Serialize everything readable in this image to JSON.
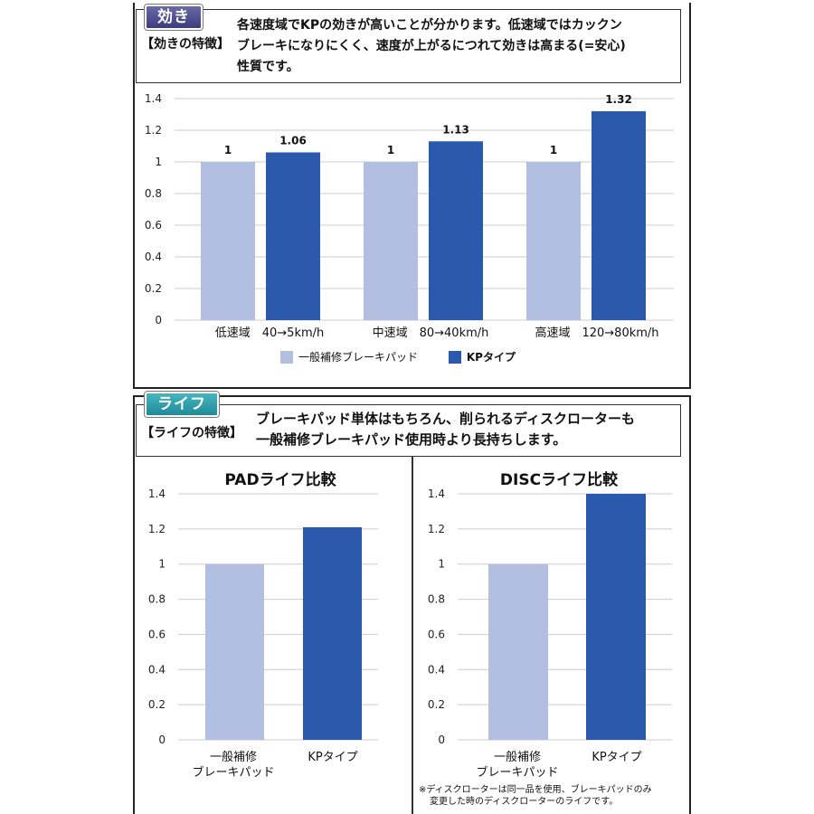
{
  "colors": {
    "light_bar": "#b3bfe0",
    "dark_bar": "#2b5aad",
    "grid": "#cccccc",
    "tag_top": "#4a4a8c",
    "tag_bottom": "#2e9aa6"
  },
  "top": {
    "tag": "効き",
    "feature_label": "【効きの特徴】",
    "desc_lines": [
      "各速度域でKPの効きが高いことが分かります。低速域ではカックン",
      "ブレーキになりにくく、速度が上がるにつれて効きは高まる(=安心)",
      "性質です。"
    ],
    "legend": [
      {
        "label": "一般補修ブレーキパッド",
        "color": "#b3bfe0"
      },
      {
        "label": "KPタイプ",
        "color": "#2b5aad"
      }
    ]
  },
  "bottom": {
    "tag": "ライフ",
    "feature_label": "【ライフの特徴】",
    "desc_lines": [
      "ブレーキパッド単体はもちろん、削られるディスクローターも",
      "一般補修ブレーキパッド使用時より長持ちします。"
    ],
    "footnote_lines": [
      "※ディスクローターは同一品を使用、ブレーキパッドのみ",
      "変更した時のディスクローターのライフです。"
    ]
  },
  "chart_data": [
    {
      "type": "bar",
      "title": "",
      "categories": [
        "低速域　40→5km/h",
        "中速域　80→40km/h",
        "高速域　120→80km/h"
      ],
      "series": [
        {
          "name": "一般補修ブレーキパッド",
          "values": [
            1,
            1,
            1
          ],
          "labels": [
            "1",
            "1",
            "1"
          ]
        },
        {
          "name": "KPタイプ",
          "values": [
            1.06,
            1.13,
            1.32
          ],
          "labels": [
            "1.06",
            "1.13",
            "1.32"
          ]
        }
      ],
      "yticks": [
        "0",
        "0.2",
        "0.4",
        "0.6",
        "0.8",
        "1",
        "1.2",
        "1.4"
      ],
      "ylim": [
        0,
        1.4
      ],
      "grid": true,
      "legend": "bottom"
    },
    {
      "type": "bar",
      "title": "PADライフ比較",
      "categories": [
        "一般補修\nブレーキパッド",
        "KPタイプ"
      ],
      "values": [
        1,
        1.21
      ],
      "yticks": [
        "0",
        "0.2",
        "0.4",
        "0.6",
        "0.8",
        "1",
        "1.2",
        "1.4"
      ],
      "ylim": [
        0,
        1.4
      ],
      "grid": true
    },
    {
      "type": "bar",
      "title": "DISCライフ比較",
      "categories": [
        "一般補修\nブレーキパッド",
        "KPタイプ"
      ],
      "values": [
        1,
        1.4
      ],
      "yticks": [
        "0",
        "0.2",
        "0.4",
        "0.6",
        "0.8",
        "1",
        "1.2",
        "1.4"
      ],
      "ylim": [
        0,
        1.4
      ],
      "grid": true
    }
  ]
}
